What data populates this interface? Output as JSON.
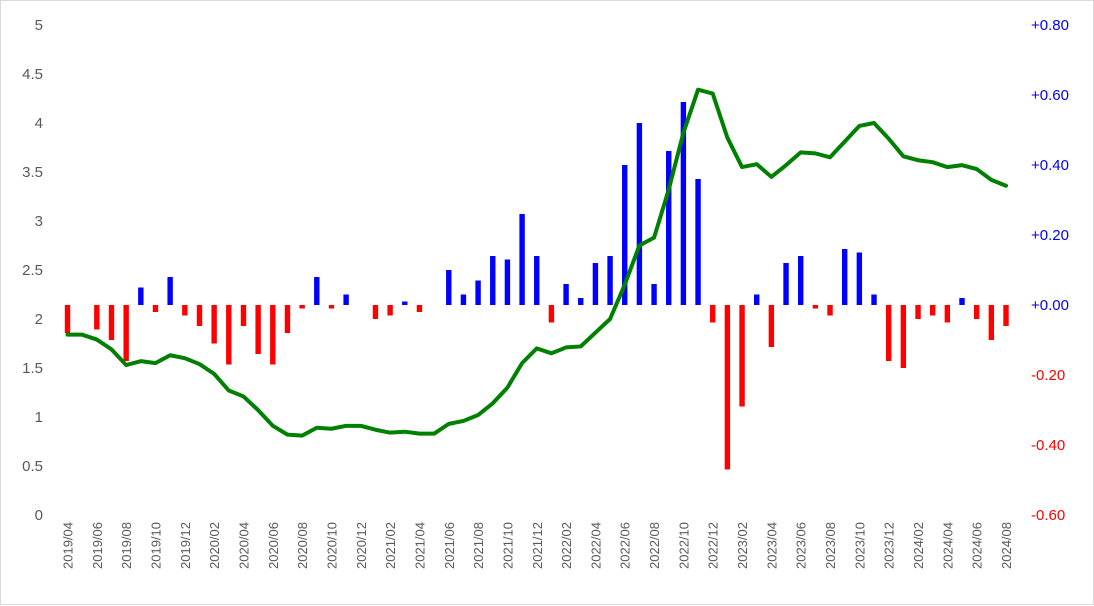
{
  "chart_data": {
    "type": "bar",
    "title": "",
    "x": [
      "2019/04",
      "2019/05",
      "2019/06",
      "2019/07",
      "2019/08",
      "2019/09",
      "2019/10",
      "2019/11",
      "2019/12",
      "2020/01",
      "2020/02",
      "2020/03",
      "2020/04",
      "2020/05",
      "2020/06",
      "2020/07",
      "2020/08",
      "2020/09",
      "2020/10",
      "2020/11",
      "2020/12",
      "2021/01",
      "2021/02",
      "2021/03",
      "2021/04",
      "2021/05",
      "2021/06",
      "2021/07",
      "2021/08",
      "2021/09",
      "2021/10",
      "2021/11",
      "2021/12",
      "2022/01",
      "2022/02",
      "2022/03",
      "2022/04",
      "2022/05",
      "2022/06",
      "2022/07",
      "2022/08",
      "2022/09",
      "2022/10",
      "2022/11",
      "2022/12",
      "2023/01",
      "2023/02",
      "2023/03",
      "2023/04",
      "2023/05",
      "2023/06",
      "2023/07",
      "2023/08",
      "2023/09",
      "2023/10",
      "2023/11",
      "2023/12",
      "2024/01",
      "2024/02",
      "2024/03",
      "2024/04",
      "2024/05",
      "2024/06",
      "2024/07",
      "2024/08"
    ],
    "x_tick_labels": [
      "2019/04",
      "2019/06",
      "2019/08",
      "2019/10",
      "2019/12",
      "2020/02",
      "2020/04",
      "2020/06",
      "2020/08",
      "2020/10",
      "2020/12",
      "2021/02",
      "2021/04",
      "2021/06",
      "2021/08",
      "2021/10",
      "2021/12",
      "2022/02",
      "2022/04",
      "2022/06",
      "2022/08",
      "2022/10",
      "2022/12",
      "2023/02",
      "2023/04",
      "2023/06",
      "2023/08",
      "2023/10",
      "2023/12",
      "2024/02",
      "2024/04",
      "2024/06",
      "2024/08"
    ],
    "series": [
      {
        "type": "bar",
        "axis": "right",
        "values": [
          -0.08,
          0,
          -0.07,
          -0.1,
          -0.16,
          0.05,
          -0.02,
          0.08,
          -0.03,
          -0.06,
          -0.11,
          -0.17,
          -0.06,
          -0.14,
          -0.17,
          -0.08,
          -0.01,
          0.08,
          -0.01,
          0.03,
          0,
          -0.04,
          -0.03,
          0.01,
          -0.02,
          0,
          0.1,
          0.03,
          0.07,
          0.14,
          0.13,
          0.26,
          0.14,
          -0.05,
          0.06,
          0.02,
          0.12,
          0.14,
          0.4,
          0.52,
          0.06,
          0.44,
          0.58,
          0.36,
          -0.05,
          -0.47,
          -0.29,
          0.03,
          -0.12,
          0.12,
          0.14,
          -0.01,
          -0.03,
          0.16,
          0.15,
          0.03,
          -0.16,
          -0.18,
          -0.04,
          -0.03,
          -0.05,
          0.02,
          -0.04,
          -0.1,
          -0.06
        ]
      },
      {
        "type": "line",
        "axis": "left",
        "values": [
          1.84,
          1.84,
          1.79,
          1.69,
          1.53,
          1.57,
          1.55,
          1.63,
          1.6,
          1.54,
          1.44,
          1.27,
          1.21,
          1.07,
          0.91,
          0.82,
          0.81,
          0.89,
          0.88,
          0.91,
          0.91,
          0.87,
          0.84,
          0.85,
          0.83,
          0.83,
          0.93,
          0.96,
          1.02,
          1.14,
          1.3,
          1.55,
          1.7,
          1.65,
          1.71,
          1.72,
          1.86,
          2.0,
          2.35,
          2.75,
          2.83,
          3.32,
          3.9,
          4.34,
          4.3,
          3.85,
          3.55,
          3.58,
          3.45,
          3.57,
          3.7,
          3.69,
          3.65,
          3.81,
          3.97,
          4.0,
          3.84,
          3.66,
          3.62,
          3.6,
          3.55,
          3.57,
          3.53,
          3.42,
          3.36
        ]
      }
    ],
    "y_left": {
      "min": 0,
      "max": 5,
      "ticks": [
        "0",
        "0.5",
        "1",
        "1.5",
        "2",
        "2.5",
        "3",
        "3.5",
        "4",
        "4.5",
        "5"
      ]
    },
    "y_right": {
      "min": -0.6,
      "max": 0.8,
      "ticks": [
        "-0.60",
        "-0.40",
        "-0.20",
        "+0.00",
        "+0.20",
        "+0.40",
        "+0.60",
        "+0.80"
      ]
    },
    "colors": {
      "positive_bar": "#0000ff",
      "negative_bar": "#ff0000",
      "line": "#008000",
      "axis_text": "#595959"
    },
    "grid": false,
    "legend": "none"
  }
}
